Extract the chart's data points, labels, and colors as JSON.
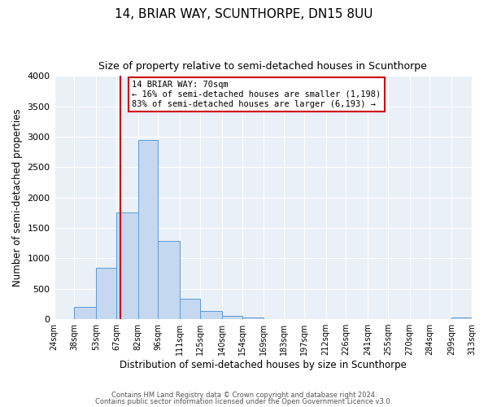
{
  "title": "14, BRIAR WAY, SCUNTHORPE, DN15 8UU",
  "subtitle": "Size of property relative to semi-detached houses in Scunthorpe",
  "xlabel": "Distribution of semi-detached houses by size in Scunthorpe",
  "ylabel": "Number of semi-detached properties",
  "bin_edges": [
    24,
    38,
    53,
    67,
    82,
    96,
    111,
    125,
    140,
    154,
    169,
    183,
    197,
    212,
    226,
    241,
    255,
    270,
    284,
    299,
    313
  ],
  "bin_counts": [
    5,
    200,
    850,
    1750,
    2950,
    1280,
    340,
    140,
    60,
    30,
    0,
    0,
    0,
    0,
    0,
    0,
    0,
    0,
    0,
    30
  ],
  "bar_color": "#c5d8f0",
  "bar_edge_color": "#5b9bd5",
  "property_line_x": 70,
  "vline_color": "#cc0000",
  "annotation_text": "14 BRIAR WAY: 70sqm\n← 16% of semi-detached houses are smaller (1,198)\n83% of semi-detached houses are larger (6,193) →",
  "annotation_box_color": "#ffffff",
  "annotation_box_edge": "#cc0000",
  "ylim": [
    0,
    4000
  ],
  "yticks": [
    0,
    500,
    1000,
    1500,
    2000,
    2500,
    3000,
    3500,
    4000
  ],
  "bg_color": "#eaf0f8",
  "footer1": "Contains HM Land Registry data © Crown copyright and database right 2024.",
  "footer2": "Contains public sector information licensed under the Open Government Licence v3.0.",
  "title_fontsize": 11,
  "subtitle_fontsize": 9
}
